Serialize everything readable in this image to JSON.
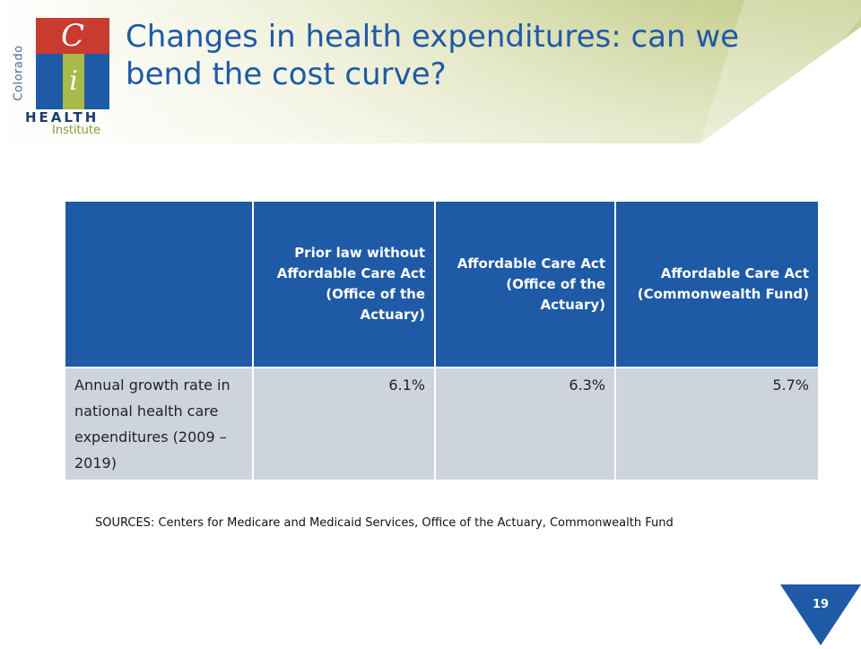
{
  "logo": {
    "letter_top": "C",
    "letter_middle": "i",
    "word_vertical": "Colorado",
    "word_main": "HEALTH",
    "word_sub": "Institute"
  },
  "title": "Changes in health expenditures: can we bend the cost curve?",
  "table": {
    "headers": [
      "",
      "Prior law without Affordable Care Act (Office of the Actuary)",
      "Affordable Care Act (Office of the Actuary)",
      "Affordable Care Act (Commonwealth Fund)"
    ],
    "rows": [
      {
        "label": "Annual growth rate in national health care expenditures (2009 – 2019)",
        "values": [
          "6.1%",
          "6.3%",
          "5.7%"
        ]
      }
    ]
  },
  "sources": "SOURCES: Centers for Medicare and Medicaid Services, Office of the Actuary, Commonwealth Fund",
  "page_number": "19",
  "colors": {
    "accent_blue": "#1e5aa6",
    "table_row_bg": "#ced4de",
    "header_green": "#c7cf8e",
    "logo_red": "#c93a2f",
    "logo_green": "#a9b94a"
  }
}
